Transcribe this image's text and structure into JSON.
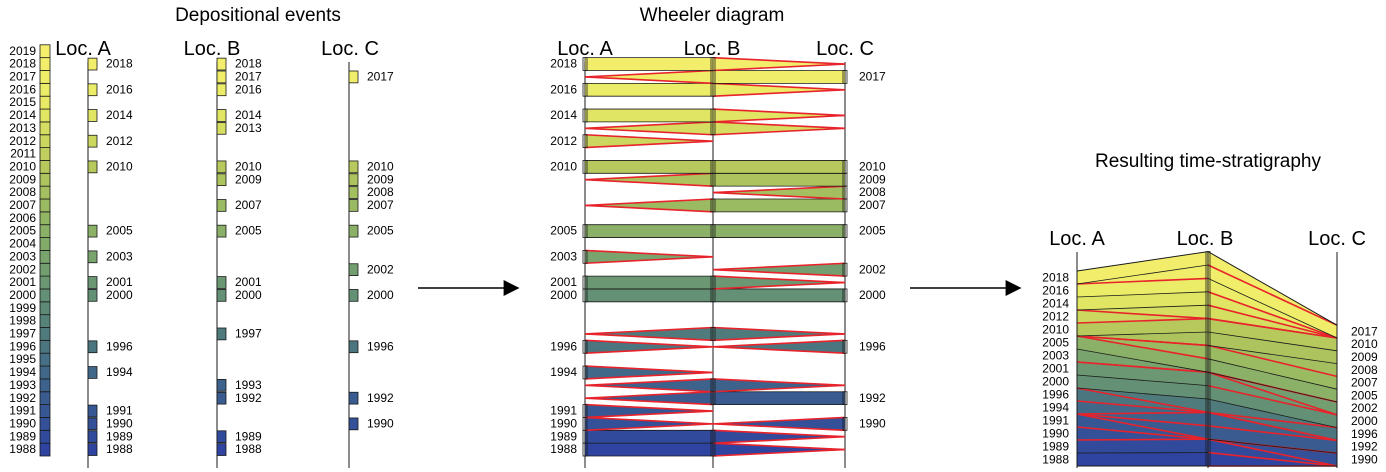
{
  "colors": {
    "ramp": [
      "#2f44a0",
      "#3a5e8e",
      "#4f7a7c",
      "#6d9a72",
      "#8fb565",
      "#b8c95c",
      "#e6ea64",
      "#f6ef6e"
    ],
    "line": "#1a1a1a",
    "hiatus": "#e8232b"
  },
  "titles": {
    "depositional": "Depositional events",
    "wheeler": "Wheeler diagram",
    "result": "Resulting time-stratigraphy"
  },
  "locations": [
    "Loc. A",
    "Loc. B",
    "Loc. C"
  ],
  "time_scale": [
    1988,
    1989,
    1990,
    1991,
    1992,
    1993,
    1994,
    1995,
    1996,
    1997,
    1998,
    1999,
    2000,
    2001,
    2002,
    2003,
    2004,
    2005,
    2006,
    2007,
    2008,
    2009,
    2010,
    2011,
    2012,
    2013,
    2014,
    2015,
    2016,
    2017,
    2018,
    2019
  ],
  "events": {
    "loc_a": [
      1988,
      1989,
      1990,
      1991,
      1994,
      1996,
      2000,
      2001,
      2003,
      2005,
      2010,
      2012,
      2014,
      2016,
      2018
    ],
    "loc_b": [
      1988,
      1989,
      1992,
      1993,
      1997,
      2000,
      2001,
      2005,
      2007,
      2009,
      2010,
      2013,
      2014,
      2016,
      2017,
      2018
    ],
    "loc_c": [
      1990,
      1992,
      1996,
      2000,
      2002,
      2005,
      2007,
      2008,
      2009,
      2010,
      2017
    ]
  },
  "wheeler": {
    "loc_a_labels": [
      "2018",
      "2016",
      "2014",
      "2012",
      "2010",
      "2005",
      "2003",
      "2001",
      "2000",
      "1996",
      "1994",
      "1991",
      "1990",
      "1989",
      "1988"
    ],
    "loc_c_labels": [
      "2017",
      "2010",
      "2009",
      "2008",
      "2007",
      "2005",
      "2002",
      "2000",
      "1996",
      "1992",
      "1990"
    ]
  },
  "result": {
    "loc_a_labels": [
      "2018",
      "2016",
      "2014",
      "2012",
      "2010",
      "2005",
      "2003",
      "2001",
      "2000",
      "1996",
      "1994",
      "1991",
      "1990",
      "1989",
      "1988"
    ],
    "loc_c_labels": [
      "2017",
      "2010",
      "2009",
      "2008",
      "2007",
      "2005",
      "2002",
      "2000",
      "1996",
      "1992",
      "1990"
    ]
  }
}
